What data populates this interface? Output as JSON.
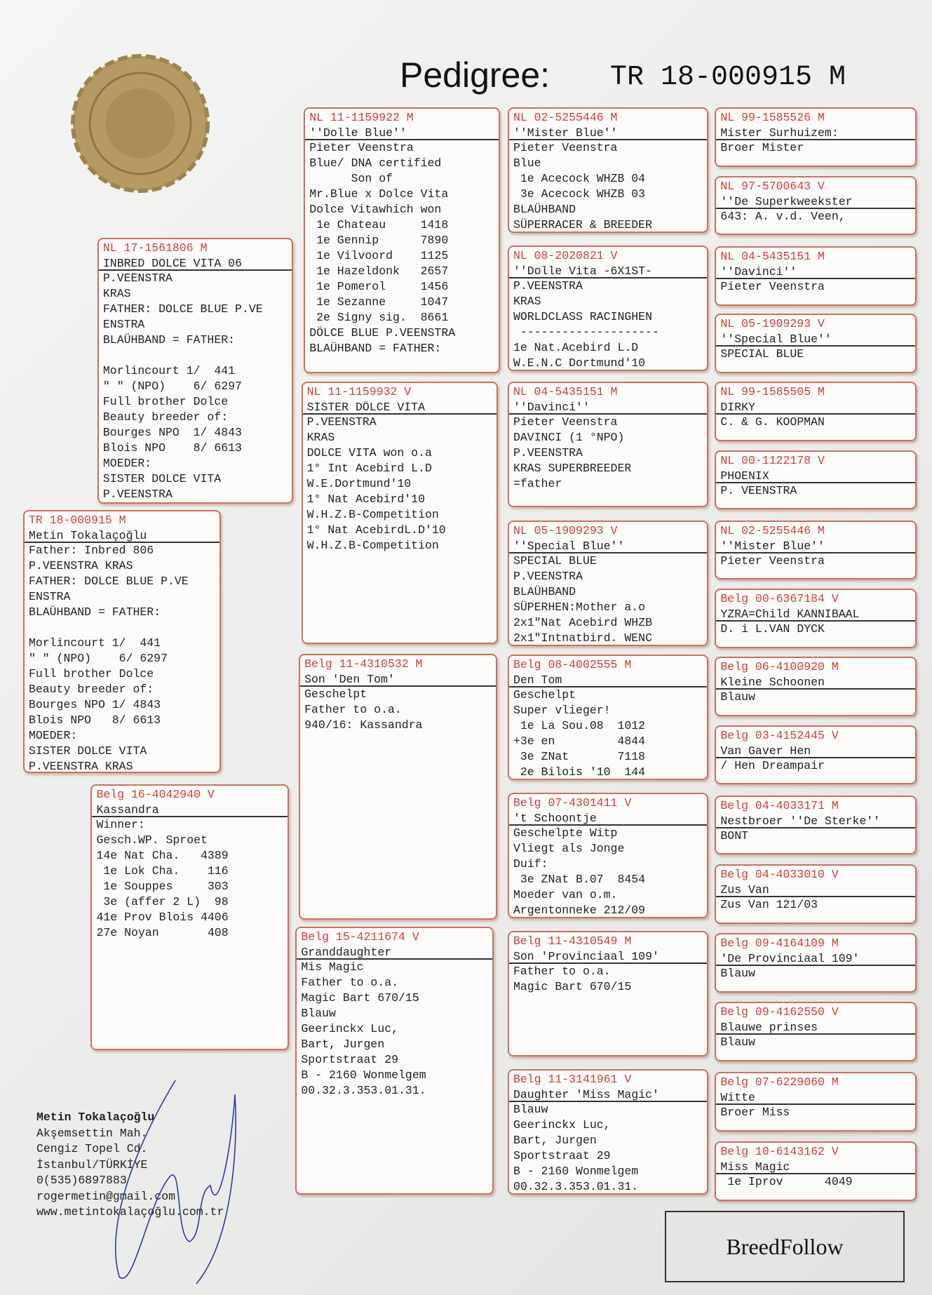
{
  "header": {
    "title": "Pedigree:",
    "ring": "TR 18-000915 M"
  },
  "boxes": [
    {
      "id": "TR 18-000915 M",
      "name": "Metin Tokalaçoğlu",
      "groups": [
        [
          "Father: Inbred 806",
          "P.VEENSTRA KRAS",
          "FATHER: DOLCE BLUE P.VE",
          "ENSTRA",
          "BLAÜHBAND = FATHER:"
        ],
        [
          "Morlincourt 1/  441",
          "\" \" (NPO)    6/ 6297",
          "Full brother Dolce",
          "Beauty breeder of:",
          "Bourges NPO 1/ 4843",
          "Blois NPO   8/ 6613",
          "MOEDER:",
          "SISTER DOLCE VITA",
          "P.VEENSTRA KRAS"
        ]
      ]
    },
    {
      "id": "NL 17-1561806 M",
      "name": "INBRED DOLCE VITA 06",
      "groups": [
        [
          "P.VEENSTRA",
          "KRAS",
          "FATHER: DOLCE BLUE P.VE",
          "ENSTRA",
          "BLAÜHBAND = FATHER:"
        ],
        [
          "Morlincourt 1/  441",
          "\" \" (NPO)    6/ 6297",
          "Full brother Dolce",
          "Beauty breeder of:",
          "Bourges NPO  1/ 4843",
          "Blois NPO    8/ 6613",
          "MOEDER:",
          "SISTER DOLCE VITA",
          "P.VEENSTRA"
        ]
      ]
    },
    {
      "id": "Belg 16-4042940 V",
      "name": "Kassandra",
      "groups": [
        [
          "Winner:",
          "Gesch.WP. Sproet",
          "14e Nat Cha.   4389",
          " 1e Lok Cha.    116",
          " 1e Souppes     303",
          " 3e (affer 2 L)  98",
          "41e Prov Blois 4406",
          "27e Noyan       408"
        ]
      ]
    },
    {
      "id": "NL 11-1159922 M",
      "name": "''Dolle Blue''",
      "groups": [
        [
          "Pieter Veenstra",
          "Blue/ DNA certified",
          "      Son of",
          "Mr.Blue x Dolce Vita",
          "Dolce Vitawhich won",
          " 1e Chateau     1418",
          " 1e Gennip      7890",
          " 1e Vilvoord    1125",
          " 1e Hazeldonk   2657",
          " 1e Pomerol     1456",
          " 1e Sezanne     1047",
          " 2e Signy sig.  8661",
          "DÖLCE BLUE P.VEENSTRA",
          "BLAÜHBAND = FATHER:"
        ]
      ]
    },
    {
      "id": "NL 11-1159932 V",
      "name": "SISTER DÖLCE VITA",
      "groups": [
        [
          "P.VEENSTRA",
          "KRAS",
          "DOLCE VITA won o.a",
          "1° Int Acebird L.D",
          "W.E.Dortmund'10",
          "1° Nat Acebird'10",
          "W.H.Z.B-Competition",
          "1° Nat AcebirdL.D'10",
          "W.H.Z.B-Competition"
        ]
      ]
    },
    {
      "id": "Belg 11-4310532 M",
      "name": "Son 'Den Tom'",
      "groups": [
        [
          "Geschelpt",
          "Father to o.a.",
          "940/16: Kassandra"
        ]
      ]
    },
    {
      "id": "Belg 15-4211674 V",
      "name": "Granddaughter",
      "groups": [
        [
          "Mis Magic",
          "Father to o.a.",
          "Magic Bart 670/15",
          "Blauw",
          "Geerinckx Luc,",
          "Bart, Jurgen",
          "Sportstraat 29",
          "B - 2160 Wonmelgem",
          "00.32.3.353.01.31."
        ]
      ]
    },
    {
      "id": "NL 02-5255446 M",
      "name": "''Mister Blue''",
      "groups": [
        [
          "Pieter Veenstra",
          "Blue",
          " 1e Acecock WHZB 04",
          " 3e Acecock WHZB 03",
          "BLAÜHBAND",
          "SÜPERRACER & BREEDER"
        ]
      ]
    },
    {
      "id": "NL 08-2020821 V",
      "name": "''Dolle Vita -6X1ST-",
      "groups": [
        [
          "P.VEENSTRA",
          "KRAS",
          "WORLDCLASS RACINGHEN",
          " --------------------",
          "1e Nat.Acebird L.D",
          "W.E.N.C Dortmund'10"
        ]
      ]
    },
    {
      "id": "NL 04-5435151 M",
      "name": "''Davinci''",
      "groups": [
        [
          "Pieter Veenstra",
          "DAVINCI (1 °NPO)",
          "P.VEENSTRA",
          "KRAS SUPERBREEDER",
          "=father"
        ]
      ]
    },
    {
      "id": "NL 05-1909293 V",
      "name": "''Special Blue''",
      "groups": [
        [
          "SPECIAL BLUE",
          "P.VEENSTRA",
          "BLAÜHBAND",
          "SÜPERHEN:Mother a.o",
          "2x1\"Nat Acebird WHZB",
          "2x1\"Intnatbird. WENC"
        ]
      ]
    },
    {
      "id": "Belg 08-4002555 M",
      "name": "Den Tom",
      "groups": [
        [
          "Geschelpt",
          "Super vlieger!",
          " 1e La Sou.08  1012",
          "+3e en         4844",
          " 3e ZNat       7118",
          " 2e Bilois '10  144"
        ]
      ]
    },
    {
      "id": "Belg 07-4301411 V",
      "name": "'t Schoontje",
      "groups": [
        [
          "Geschelpte Witp",
          "Vliegt als Jonge",
          "Duif:",
          " 3e ZNat B.07  8454",
          "Moeder van o.m.",
          "Argentonneke 212/09"
        ]
      ]
    },
    {
      "id": "Belg 11-4310549 M",
      "name": "Son 'Provinciaal 109'",
      "groups": [
        [
          "Father to o.a.",
          "Magic Bart 670/15"
        ]
      ]
    },
    {
      "id": "Belg 11-3141961 V",
      "name": "Daughter 'Miss Magic'",
      "groups": [
        [
          "Blauw",
          "Geerinckx Luc,",
          "Bart, Jurgen",
          "Sportstraat 29",
          "B - 2160 Wonmelgem",
          "00.32.3.353.01.31."
        ]
      ]
    },
    {
      "id": "NL 99-1585526 M",
      "name": "Mister Surhuizem:",
      "groups": [
        [
          "Broer Mister"
        ]
      ]
    },
    {
      "id": "NL 97-5700643 V",
      "name": "''De Superkweekster",
      "groups": [
        [
          "643: A. v.d. Veen,"
        ]
      ]
    },
    {
      "id": "NL 04-5435151 M",
      "name": "''Davinci''",
      "groups": [
        [
          "Pieter Veenstra"
        ]
      ]
    },
    {
      "id": "NL 05-1909293 V",
      "name": "''Special Blue''",
      "groups": [
        [
          "SPECIAL BLUE"
        ]
      ]
    },
    {
      "id": "NL 99-1585505 M",
      "name": "DIRKY",
      "groups": [
        [
          "C. & G. KOOPMAN"
        ]
      ]
    },
    {
      "id": "NL 00-1122178 V",
      "name": "PHOENIX",
      "groups": [
        [
          "P. VEENSTRA"
        ]
      ]
    },
    {
      "id": "NL 02-5255446 M",
      "name": "''Mister Blue''",
      "groups": [
        [
          "Pieter Veenstra"
        ]
      ]
    },
    {
      "id": "Belg 00-6367184 V",
      "name": "YZRA=Child KANNIBAAL",
      "groups": [
        [
          "D. i L.VAN DYCK"
        ]
      ]
    },
    {
      "id": "Belg 06-4100920 M",
      "name": "Kleine Schoonen",
      "groups": [
        [
          "Blauw"
        ]
      ]
    },
    {
      "id": "Belg 03-4152445 V",
      "name": "Van Gaver Hen",
      "groups": [
        [
          "/ Hen Dreampair"
        ]
      ]
    },
    {
      "id": "Belg 04-4033171 M",
      "name": "Nestbroer ''De Sterke''",
      "groups": [
        [
          "BONT"
        ]
      ]
    },
    {
      "id": "Belg 04-4033010 V",
      "name": "Zus Van",
      "groups": [
        [
          "Zus Van 121/03"
        ]
      ]
    },
    {
      "id": "Belg 09-4164109 M",
      "name": "'De Provinciaal 109'",
      "groups": [
        [
          "Blauw"
        ]
      ]
    },
    {
      "id": "Belg 09-4162550 V",
      "name": "Blauwe prinses",
      "groups": [
        [
          "Blauw"
        ]
      ]
    },
    {
      "id": "Belg 07-6229060 M",
      "name": "Witte",
      "groups": [
        [
          "Broer Miss"
        ]
      ]
    },
    {
      "id": "Belg 10-6143162 V",
      "name": "Miss Magic",
      "groups": [
        [
          " 1e Iprov      4049"
        ]
      ]
    }
  ],
  "owner": [
    "Metin Tokalaçoğlu",
    "Akşemsettin Mah.",
    "Cengiz Topel Cd.",
    "İstanbul/TÜRKİYE",
    "0(535)6897883",
    "rogermetin@gmail.com",
    "www.metintokalaçoğlu.com.tr"
  ],
  "brand": "BreedFollow"
}
